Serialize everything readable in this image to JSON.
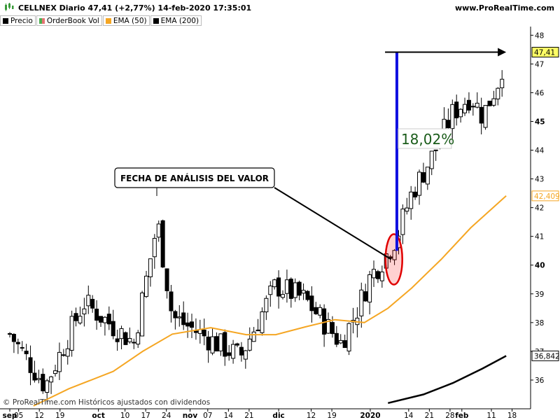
{
  "header": {
    "title": "CELLNEX Diario 47,41 (+2,77%) 14-feb-2020 17:35:01",
    "site": "www.ProRealTime.com"
  },
  "legend": [
    {
      "label": "Precio",
      "color": "#000000",
      "icon": "candle-icon"
    },
    {
      "label": "OrderBook Vol",
      "color": "#4caf50",
      "icon": "orderbook-icon"
    },
    {
      "label": "EMA (50)",
      "color": "#f5a623",
      "icon": "ema-swatch-icon"
    },
    {
      "label": "EMA (200)",
      "color": "#000000",
      "icon": "ema-swatch-icon"
    }
  ],
  "annotations": {
    "callout": "FECHA DE ANÁLISIS DEL VALOR",
    "percent": "18,02%"
  },
  "footer": "© ProRealTime.com  Históricos ajustados con dividendos",
  "chart_data": {
    "type": "candlestick",
    "y_ticks": [
      "36",
      "37",
      "38",
      "39",
      "40",
      "41",
      "42",
      "43",
      "44",
      "45",
      "46",
      "47",
      "48"
    ],
    "bold_y_ticks": [
      "40",
      "45"
    ],
    "ylim": [
      35,
      48.3
    ],
    "x_ticks": [
      {
        "label": "sep",
        "day": 0,
        "bold": true
      },
      {
        "label": "05",
        "day": 3
      },
      {
        "label": "12",
        "day": 10
      },
      {
        "label": "19",
        "day": 17
      },
      {
        "label": "oct",
        "day": 30,
        "bold": true
      },
      {
        "label": "10",
        "day": 39
      },
      {
        "label": "17",
        "day": 46
      },
      {
        "label": "24",
        "day": 53
      },
      {
        "label": "nov",
        "day": 61,
        "bold": true
      },
      {
        "label": "07",
        "day": 67
      },
      {
        "label": "14",
        "day": 74
      },
      {
        "label": "21",
        "day": 81
      },
      {
        "label": "dic",
        "day": 91,
        "bold": true
      },
      {
        "label": "12",
        "day": 102
      },
      {
        "label": "19",
        "day": 109
      },
      {
        "label": "2020",
        "day": 122,
        "bold": true
      },
      {
        "label": "14",
        "day": 135
      },
      {
        "label": "21",
        "day": 142
      },
      {
        "label": "28",
        "day": 149
      },
      {
        "label": "feb",
        "day": 153,
        "bold": true
      },
      {
        "label": "11",
        "day": 163
      },
      {
        "label": "18",
        "day": 170
      }
    ],
    "xlim": [
      0,
      172
    ],
    "price_tags": [
      {
        "value": 47.41,
        "label": "47,41",
        "bg": "#ffff66",
        "color": "#000000"
      },
      {
        "value": 42.409,
        "label": "42,409",
        "bg": "#ffffff",
        "color": "#f5a623"
      },
      {
        "value": 36.842,
        "label": "36,842",
        "bg": "#ffffff",
        "color": "#000000"
      }
    ],
    "key_closes": [
      {
        "x": 0,
        "y": 37.6
      },
      {
        "x": 12,
        "y": 35.8
      },
      {
        "x": 25,
        "y": 38.7
      },
      {
        "x": 42,
        "y": 37.3
      },
      {
        "x": 50,
        "y": 41.5
      },
      {
        "x": 55,
        "y": 38.2
      },
      {
        "x": 68,
        "y": 37.4
      },
      {
        "x": 78,
        "y": 36.8
      },
      {
        "x": 90,
        "y": 39.3
      },
      {
        "x": 100,
        "y": 38.8
      },
      {
        "x": 112,
        "y": 37.3
      },
      {
        "x": 117,
        "y": 38.3
      },
      {
        "x": 122,
        "y": 39.6
      },
      {
        "x": 127,
        "y": 40.3
      },
      {
        "x": 131,
        "y": 41.0
      },
      {
        "x": 136,
        "y": 42.5
      },
      {
        "x": 143,
        "y": 43.8
      },
      {
        "x": 150,
        "y": 45.3
      },
      {
        "x": 156,
        "y": 45.9
      },
      {
        "x": 160,
        "y": 45.2
      },
      {
        "x": 165,
        "y": 46.3
      },
      {
        "x": 168,
        "y": 47.41
      }
    ],
    "ema50": [
      {
        "x": 8,
        "y": 35.1
      },
      {
        "x": 20,
        "y": 35.7
      },
      {
        "x": 35,
        "y": 36.3
      },
      {
        "x": 45,
        "y": 37.0
      },
      {
        "x": 55,
        "y": 37.6
      },
      {
        "x": 68,
        "y": 37.82
      },
      {
        "x": 80,
        "y": 37.58
      },
      {
        "x": 90,
        "y": 37.58
      },
      {
        "x": 100,
        "y": 37.85
      },
      {
        "x": 110,
        "y": 38.1
      },
      {
        "x": 120,
        "y": 38.0
      },
      {
        "x": 128,
        "y": 38.5
      },
      {
        "x": 136,
        "y": 39.2
      },
      {
        "x": 146,
        "y": 40.2
      },
      {
        "x": 156,
        "y": 41.3
      },
      {
        "x": 168,
        "y": 42.41
      }
    ],
    "ema200": [
      {
        "x": 128,
        "y": 35.2
      },
      {
        "x": 140,
        "y": 35.5
      },
      {
        "x": 150,
        "y": 35.9
      },
      {
        "x": 160,
        "y": 36.4
      },
      {
        "x": 168,
        "y": 36.842
      }
    ],
    "analysis_point": {
      "x": 130,
      "y": 40.2
    },
    "arrow_start": {
      "x": 127,
      "y": 47.41
    },
    "arrow_end": {
      "x": 168,
      "y": 47.41
    },
    "measure_line": {
      "x": 131,
      "y1": 40.5,
      "y2": 47.41
    }
  }
}
